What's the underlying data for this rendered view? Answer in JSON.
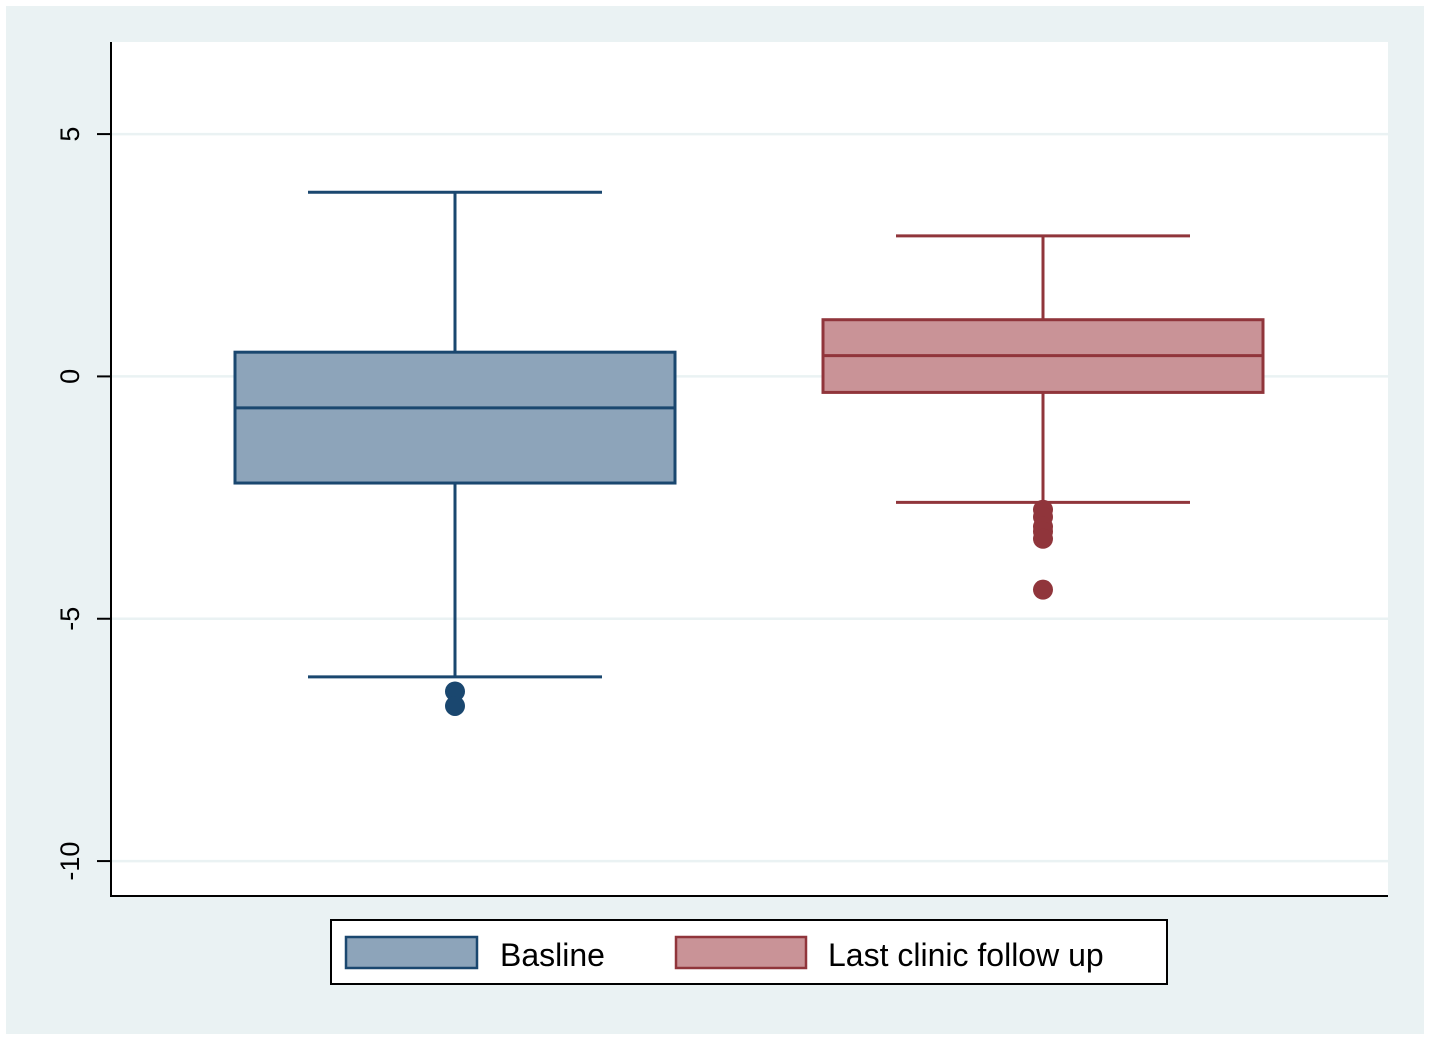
{
  "chart_data": {
    "type": "box",
    "title": "",
    "xlabel": "",
    "ylabel": "",
    "ylim": [
      -10.7,
      6.9
    ],
    "yticks": [
      5,
      0,
      -5,
      -10
    ],
    "ytick_labels": [
      "5",
      "0",
      "-5",
      "-10"
    ],
    "grid": true,
    "legend_position": "bottom",
    "series": [
      {
        "name": "Basline",
        "color": "#8DA4BA",
        "edge_color": "#1A476F",
        "whisker_low": -6.2,
        "q1": -2.2,
        "median": -0.65,
        "q3": 0.5,
        "whisker_high": 3.8,
        "outliers": [
          -6.5,
          -6.8
        ]
      },
      {
        "name": "Last clinic follow up",
        "color": "#C99397",
        "edge_color": "#90353B",
        "whisker_low": -2.6,
        "q1": -0.33,
        "median": 0.43,
        "q3": 1.17,
        "whisker_high": 2.9,
        "outliers": [
          -2.75,
          -2.9,
          -3.1,
          -3.2,
          -3.35,
          -4.4
        ]
      }
    ]
  },
  "colors": {
    "outer_background": "#EAF2F3",
    "plot_background": "#FFFFFF",
    "gridline": "#EAF2F3",
    "axis": "#000000"
  }
}
